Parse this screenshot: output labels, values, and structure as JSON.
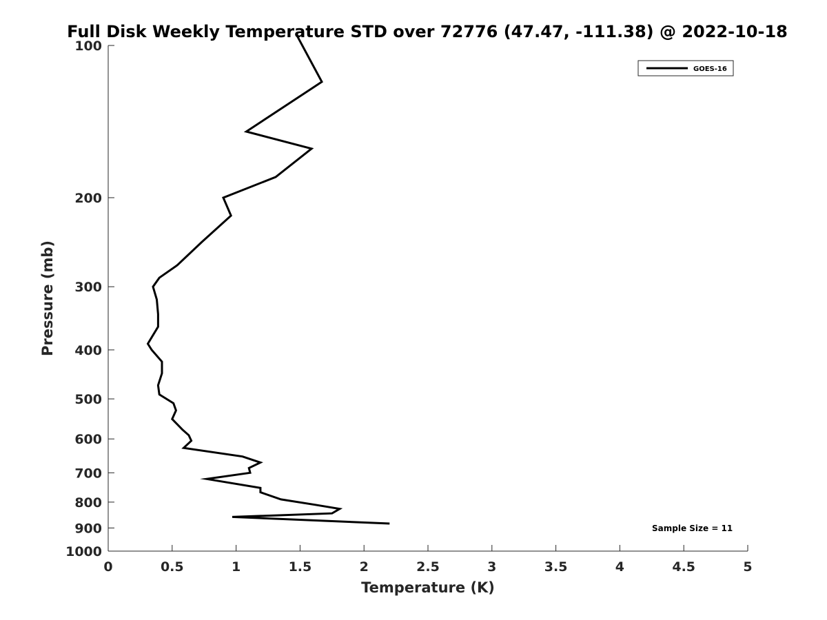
{
  "chart_data": {
    "type": "line",
    "title": "Full Disk Weekly Temperature STD over 72776 (47.47, -111.38) @ 2022-10-18",
    "xlabel": "Temperature (K)",
    "ylabel": "Pressure (mb)",
    "xlim": [
      0,
      5
    ],
    "ylim": [
      100,
      1000
    ],
    "yscale": "log",
    "y_reversed": true,
    "grid": false,
    "legend_position": "top-right",
    "x_ticks": [
      0,
      0.5,
      1,
      1.5,
      2,
      2.5,
      3,
      3.5,
      4,
      4.5,
      5
    ],
    "x_tick_labels": [
      "0",
      "0.5",
      "1",
      "1.5",
      "2",
      "2.5",
      "3",
      "3.5",
      "4",
      "4.5",
      "5"
    ],
    "y_ticks": [
      100,
      200,
      300,
      400,
      500,
      600,
      700,
      800,
      900,
      1000
    ],
    "y_tick_labels": [
      "100",
      "200",
      "300",
      "400",
      "500",
      "600",
      "700",
      "800",
      "900",
      "1000"
    ],
    "series": [
      {
        "name": "GOES-16",
        "color": "#000000",
        "x": [
          1.47,
          1.67,
          1.08,
          1.59,
          1.31,
          0.9,
          0.96,
          0.73,
          0.54,
          0.4,
          0.35,
          0.38,
          0.39,
          0.39,
          0.31,
          0.34,
          0.42,
          0.42,
          0.39,
          0.4,
          0.51,
          0.53,
          0.5,
          0.58,
          0.63,
          0.65,
          0.59,
          1.05,
          1.19,
          1.1,
          1.11,
          0.77,
          1.19,
          1.19,
          1.35,
          1.62,
          1.81,
          1.75,
          0.97,
          2.2
        ],
        "y": [
          95,
          118,
          148,
          160,
          182,
          200,
          217,
          245,
          272,
          288,
          300,
          318,
          340,
          360,
          389,
          400,
          422,
          445,
          470,
          490,
          510,
          527,
          548,
          575,
          590,
          605,
          625,
          650,
          668,
          685,
          700,
          720,
          750,
          765,
          790,
          810,
          825,
          842,
          856,
          882
        ]
      }
    ],
    "annotations": [
      "Sample Size = 11"
    ]
  }
}
